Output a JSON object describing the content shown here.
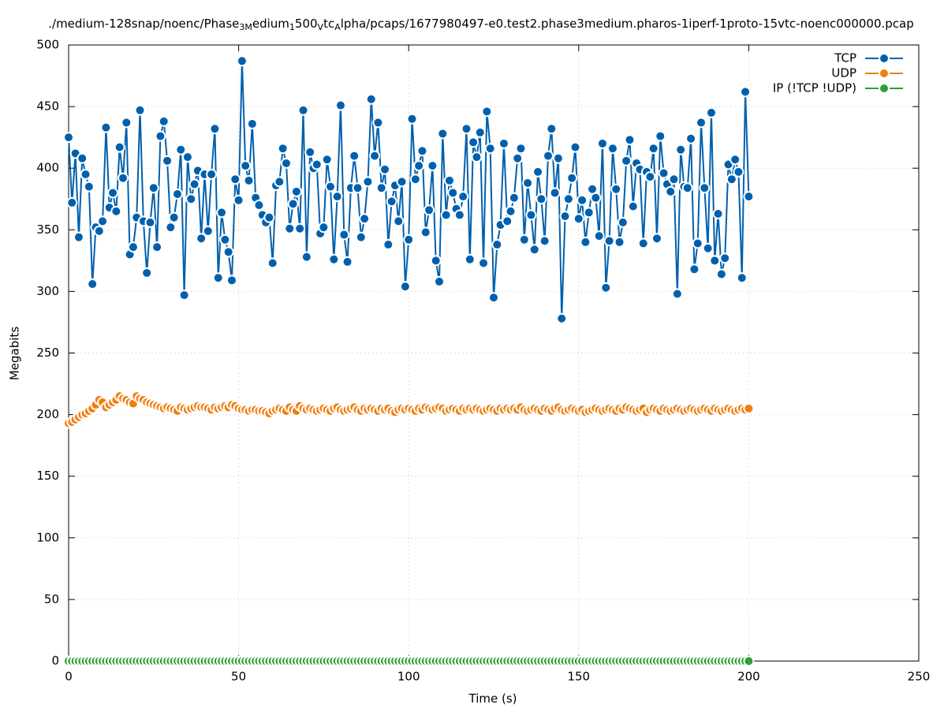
{
  "chart_data": {
    "type": "line",
    "title_parts": [
      {
        "text": "./medium-128snap/noenc/Phase"
      },
      {
        "text": "3M",
        "subscript": true
      },
      {
        "text": "edium"
      },
      {
        "text": "1",
        "subscript": true
      },
      {
        "text": "500"
      },
      {
        "text": "V",
        "subscript": true
      },
      {
        "text": "tc"
      },
      {
        "text": "A",
        "subscript": true
      },
      {
        "text": "lpha/pcaps/1677980497-e0.test2.phase3medium.pharos-1iperf-1proto-15vtc-noenc000000.pcap"
      }
    ],
    "x_label": "Time (s)",
    "y_label": "Megabits",
    "xlim": [
      0,
      250
    ],
    "xticks": [
      0,
      50,
      100,
      150,
      200,
      250
    ],
    "ylim": [
      0,
      500
    ],
    "yticks": [
      0,
      50,
      100,
      150,
      200,
      250,
      300,
      350,
      400,
      450,
      500
    ],
    "grid": true,
    "legend": "top-right",
    "x": [
      0,
      1,
      2,
      3,
      4,
      5,
      6,
      7,
      8,
      9,
      10,
      11,
      12,
      13,
      14,
      15,
      16,
      17,
      18,
      19,
      20,
      21,
      22,
      23,
      24,
      25,
      26,
      27,
      28,
      29,
      30,
      31,
      32,
      33,
      34,
      35,
      36,
      37,
      38,
      39,
      40,
      41,
      42,
      43,
      44,
      45,
      46,
      47,
      48,
      49,
      50,
      51,
      52,
      53,
      54,
      55,
      56,
      57,
      58,
      59,
      60,
      61,
      62,
      63,
      64,
      65,
      66,
      67,
      68,
      69,
      70,
      71,
      72,
      73,
      74,
      75,
      76,
      77,
      78,
      79,
      80,
      81,
      82,
      83,
      84,
      85,
      86,
      87,
      88,
      89,
      90,
      91,
      92,
      93,
      94,
      95,
      96,
      97,
      98,
      99,
      100,
      101,
      102,
      103,
      104,
      105,
      106,
      107,
      108,
      109,
      110,
      111,
      112,
      113,
      114,
      115,
      116,
      117,
      118,
      119,
      120,
      121,
      122,
      123,
      124,
      125,
      126,
      127,
      128,
      129,
      130,
      131,
      132,
      133,
      134,
      135,
      136,
      137,
      138,
      139,
      140,
      141,
      142,
      143,
      144,
      145,
      146,
      147,
      148,
      149,
      150,
      151,
      152,
      153,
      154,
      155,
      156,
      157,
      158,
      159,
      160,
      161,
      162,
      163,
      164,
      165,
      166,
      167,
      168,
      169,
      170,
      171,
      172,
      173,
      174,
      175,
      176,
      177,
      178,
      179,
      180,
      181,
      182,
      183,
      184,
      185,
      186,
      187,
      188,
      189,
      190,
      191,
      192,
      193,
      194,
      195,
      196,
      197,
      198,
      199,
      200
    ],
    "series": [
      {
        "name": "TCP",
        "color": "#0060ad",
        "values": [
          425,
          372,
          412,
          344,
          408,
          395,
          385,
          306,
          352,
          349,
          357,
          433,
          368,
          380,
          365,
          417,
          392,
          437,
          330,
          336,
          360,
          447,
          357,
          315,
          356,
          384,
          336,
          426,
          438,
          406,
          352,
          360,
          379,
          415,
          297,
          409,
          375,
          387,
          398,
          343,
          395,
          349,
          395,
          432,
          311,
          364,
          342,
          332,
          309,
          391,
          374,
          487,
          402,
          390,
          436,
          376,
          370,
          362,
          356,
          360,
          323,
          386,
          389,
          416,
          404,
          351,
          371,
          381,
          351,
          447,
          328,
          413,
          400,
          403,
          347,
          352,
          407,
          385,
          326,
          377,
          451,
          346,
          324,
          384,
          410,
          384,
          344,
          359,
          389,
          456,
          410,
          437,
          384,
          399,
          338,
          373,
          386,
          357,
          389,
          304,
          342,
          440,
          391,
          402,
          414,
          348,
          366,
          402,
          325,
          308,
          428,
          362,
          390,
          380,
          367,
          362,
          377,
          432,
          326,
          421,
          409,
          429,
          323,
          446,
          416,
          295,
          338,
          354,
          420,
          357,
          365,
          376,
          408,
          416,
          342,
          388,
          362,
          334,
          397,
          375,
          341,
          410,
          432,
          380,
          408,
          278,
          361,
          375,
          392,
          417,
          359,
          374,
          340,
          364,
          383,
          376,
          345,
          420,
          303,
          341,
          416,
          383,
          340,
          356,
          406,
          423,
          369,
          404,
          399,
          339,
          397,
          393,
          416,
          343,
          426,
          396,
          387,
          381,
          391,
          298,
          415,
          385,
          384,
          424,
          318,
          339,
          437,
          384,
          335,
          445,
          325,
          363,
          314,
          327,
          403,
          391,
          407,
          397,
          311,
          462,
          377
        ]
      },
      {
        "name": "UDP",
        "color": "#f07f10",
        "values": [
          193,
          194,
          196,
          198,
          200,
          201,
          203,
          205,
          208,
          212,
          210,
          206,
          208,
          210,
          212,
          215,
          213,
          212,
          210,
          209,
          215,
          213,
          212,
          210,
          209,
          208,
          207,
          206,
          205,
          206,
          205,
          204,
          203,
          206,
          205,
          204,
          205,
          206,
          207,
          206,
          206,
          205,
          204,
          206,
          205,
          206,
          207,
          206,
          208,
          207,
          205,
          204,
          204,
          203,
          204,
          204,
          203,
          203,
          202,
          201,
          203,
          204,
          205,
          204,
          203,
          206,
          204,
          203,
          207,
          205,
          204,
          205,
          204,
          203,
          204,
          205,
          204,
          203,
          205,
          206,
          204,
          203,
          204,
          205,
          206,
          204,
          203,
          205,
          204,
          205,
          204,
          203,
          205,
          204,
          205,
          203,
          202,
          204,
          205,
          204,
          205,
          204,
          203,
          205,
          204,
          206,
          205,
          204,
          205,
          206,
          205,
          203,
          204,
          205,
          204,
          203,
          205,
          204,
          205,
          204,
          205,
          204,
          203,
          204,
          205,
          204,
          203,
          205,
          204,
          205,
          204,
          205,
          204,
          206,
          204,
          203,
          204,
          205,
          204,
          203,
          205,
          204,
          203,
          205,
          206,
          204,
          203,
          204,
          205,
          204,
          203,
          204,
          202,
          203,
          204,
          205,
          204,
          203,
          204,
          205,
          204,
          203,
          205,
          204,
          206,
          205,
          204,
          203,
          204,
          205,
          202,
          204,
          205,
          204,
          203,
          205,
          204,
          203,
          204,
          205,
          204,
          203,
          204,
          205,
          204,
          203,
          204,
          205,
          204,
          203,
          205,
          204,
          203,
          204,
          205,
          204,
          203,
          204,
          205,
          204,
          205
        ]
      },
      {
        "name": "IP (!TCP  !UDP)",
        "color": "#2e9e37",
        "values": [
          0,
          0,
          0,
          0,
          0,
          0,
          0,
          0,
          0,
          0,
          0,
          0,
          0,
          0,
          0,
          0,
          0,
          0,
          0,
          0,
          0,
          0,
          0,
          0,
          0,
          0,
          0,
          0,
          0,
          0,
          0,
          0,
          0,
          0,
          0,
          0,
          0,
          0,
          0,
          0,
          0,
          0,
          0,
          0,
          0,
          0,
          0,
          0,
          0,
          0,
          0,
          0,
          0,
          0,
          0,
          0,
          0,
          0,
          0,
          0,
          0,
          0,
          0,
          0,
          0,
          0,
          0,
          0,
          0,
          0,
          0,
          0,
          0,
          0,
          0,
          0,
          0,
          0,
          0,
          0,
          0,
          0,
          0,
          0,
          0,
          0,
          0,
          0,
          0,
          0,
          0,
          0,
          0,
          0,
          0,
          0,
          0,
          0,
          0,
          0,
          0,
          0,
          0,
          0,
          0,
          0,
          0,
          0,
          0,
          0,
          0,
          0,
          0,
          0,
          0,
          0,
          0,
          0,
          0,
          0,
          0,
          0,
          0,
          0,
          0,
          0,
          0,
          0,
          0,
          0,
          0,
          0,
          0,
          0,
          0,
          0,
          0,
          0,
          0,
          0,
          0,
          0,
          0,
          0,
          0,
          0,
          0,
          0,
          0,
          0,
          0,
          0,
          0,
          0,
          0,
          0,
          0,
          0,
          0,
          0,
          0,
          0,
          0,
          0,
          0,
          0,
          0,
          0,
          0,
          0,
          0,
          0,
          0,
          0,
          0,
          0,
          0,
          0,
          0,
          0,
          0,
          0,
          0,
          0,
          0,
          0,
          0,
          0,
          0,
          0,
          0,
          0,
          0,
          0,
          0,
          0,
          0,
          0,
          0,
          0,
          0
        ]
      }
    ]
  }
}
